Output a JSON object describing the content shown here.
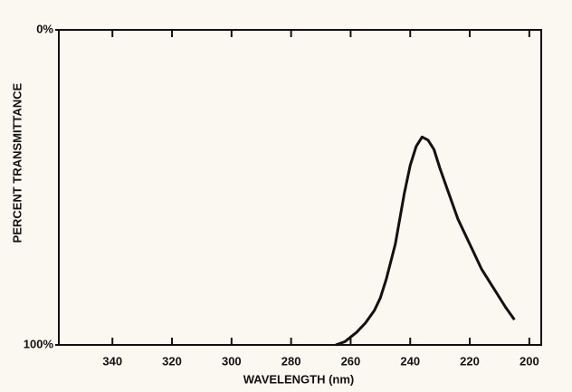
{
  "chart_data": {
    "type": "line",
    "x_label": "WAVELENGTH (nm)",
    "y_label": "PERCENT TRANSMITTANCE",
    "series": [
      {
        "color": "#111111",
        "x": [
          265,
          262,
          258,
          255,
          252,
          250,
          248,
          245,
          242,
          240,
          238,
          236,
          234,
          232,
          230,
          227,
          224,
          220,
          216,
          212,
          208,
          205
        ],
        "values": [
          100,
          99,
          96,
          93,
          89,
          85,
          79,
          68,
          52,
          43,
          37,
          34,
          35,
          38,
          44,
          52,
          60,
          68,
          76,
          82,
          88,
          92
        ]
      }
    ],
    "xlim": [
      358,
      196
    ],
    "xticks": [
      340,
      320,
      300,
      280,
      260,
      240,
      220,
      200
    ],
    "ylim": [
      100,
      0
    ],
    "yticks": [
      {
        "value": 0,
        "label": "0%"
      },
      {
        "value": 100,
        "label": "100%"
      }
    ],
    "grid": false
  }
}
